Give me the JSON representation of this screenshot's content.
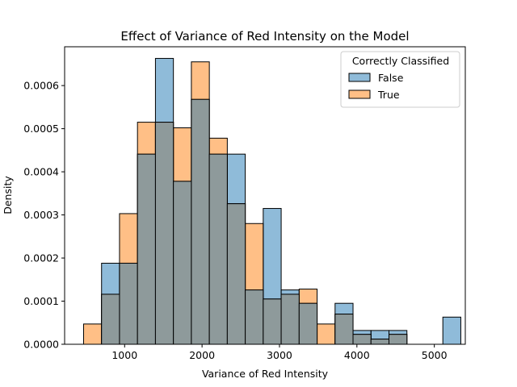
{
  "chart_data": {
    "type": "bar",
    "title": "Effect of Variance of Red Intensity on the Model",
    "xlabel": "Variance of Red Intensity",
    "ylabel": "Density",
    "xlim": [
      225,
      5400
    ],
    "ylim": [
      0,
      0.00069
    ],
    "xticks": [
      1000,
      2000,
      3000,
      4000,
      5000
    ],
    "xtick_labels": [
      "1000",
      "2000",
      "3000",
      "4000",
      "5000"
    ],
    "yticks": [
      0,
      0.0001,
      0.0002,
      0.0003,
      0.0004,
      0.0005,
      0.0006
    ],
    "ytick_labels": [
      "0.0000",
      "0.0001",
      "0.0002",
      "0.0003",
      "0.0004",
      "0.0005",
      "0.0006"
    ],
    "bin_edges": [
      470,
      702,
      934,
      1166,
      1398,
      1630,
      1862,
      2094,
      2326,
      2558,
      2790,
      3022,
      3254,
      3486,
      3718,
      3950,
      4182,
      4414,
      4646,
      4878,
      5110
    ],
    "bin_width": 232,
    "grid": false,
    "legend": {
      "title": "Correctly Classified",
      "placement": "top-right"
    },
    "series": [
      {
        "name": "False",
        "color": "#1f77b4",
        "values": [
          0,
          0.000188,
          0.000188,
          0.000441,
          0.000663,
          0.000378,
          0.000568,
          0.000441,
          0.000441,
          0.000126,
          0.000315,
          0.000126,
          9.5e-05,
          0,
          9.5e-05,
          3.2e-05,
          3.2e-05,
          3.2e-05,
          0,
          0,
          6.3e-05
        ]
      },
      {
        "name": "True",
        "color": "#ff7f0e",
        "values": [
          4.7e-05,
          0.000116,
          0.000303,
          0.000515,
          0.000515,
          0.000502,
          0.000655,
          0.000478,
          0.000326,
          0.00028,
          0.000105,
          0.000116,
          0.000128,
          4.7e-05,
          7e-05,
          2.3e-05,
          1.2e-05,
          2.3e-05,
          0,
          0,
          0
        ]
      }
    ],
    "overlap_color": "#8e9a9b"
  }
}
